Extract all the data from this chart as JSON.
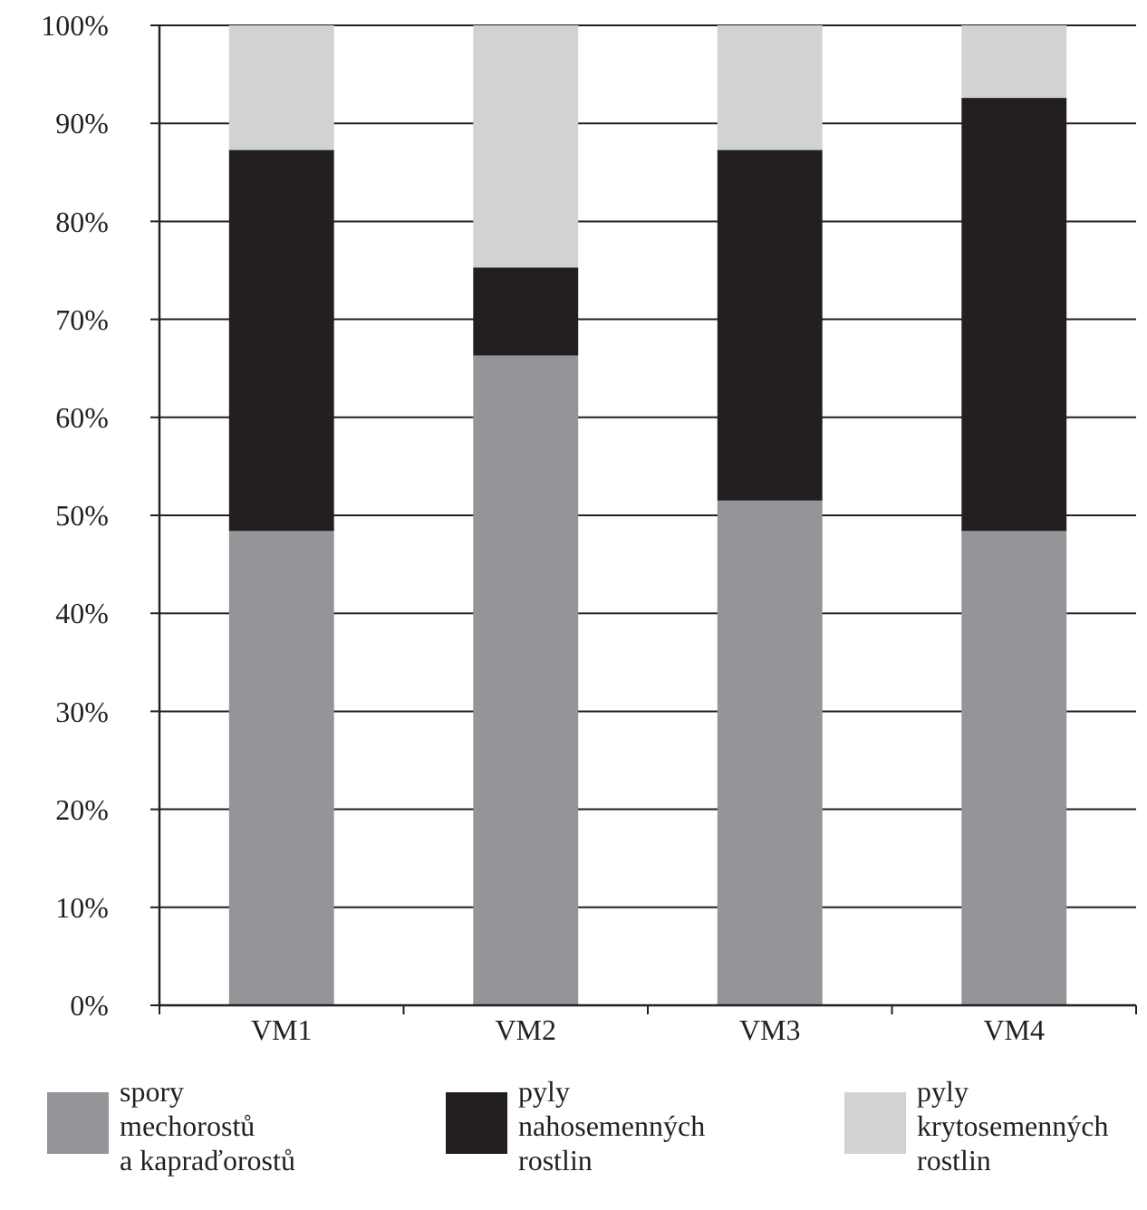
{
  "chart_data": {
    "type": "bar",
    "stacked": true,
    "categories": [
      "VM1",
      "VM2",
      "VM3",
      "VM4"
    ],
    "series": [
      {
        "name": "spory mechorostů a kapraďorostů",
        "color": "#939598",
        "values": [
          48.4,
          66.3,
          51.5,
          48.4
        ]
      },
      {
        "name": "pyly nahosemenných rostlin",
        "color": "#231f20",
        "values": [
          38.9,
          9,
          35.8,
          44.2
        ]
      },
      {
        "name": "pyly krytosemenných rostlin",
        "color": "#d1d2d4",
        "values": [
          12.7,
          24.7,
          12.7,
          7.4
        ]
      }
    ],
    "ylim": [
      0,
      100
    ],
    "yticks": [
      {
        "value": 0,
        "label": "0%"
      },
      {
        "value": 10,
        "label": "10%"
      },
      {
        "value": 20,
        "label": "20%"
      },
      {
        "value": 30,
        "label": "30%"
      },
      {
        "value": 40,
        "label": "40%"
      },
      {
        "value": 50,
        "label": "50%"
      },
      {
        "value": 60,
        "label": "60%"
      },
      {
        "value": 70,
        "label": "70%"
      },
      {
        "value": 80,
        "label": "80%"
      },
      {
        "value": 90,
        "label": "90%"
      },
      {
        "value": 100,
        "label": "100%"
      }
    ],
    "grid": "y",
    "legend": "bottom"
  }
}
